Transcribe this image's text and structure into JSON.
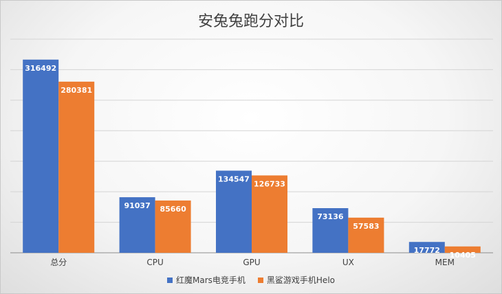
{
  "chart_data": {
    "type": "bar",
    "title": "安兔兔跑分对比",
    "categories": [
      "总分",
      "CPU",
      "GPU",
      "UX",
      "MEM"
    ],
    "series": [
      {
        "name": "红魔Mars电竞手机",
        "values": [
          316492,
          91037,
          134547,
          73136,
          17772
        ],
        "color": "#4472c4"
      },
      {
        "name": "黑鲨游戏手机Helo",
        "values": [
          280381,
          85660,
          126733,
          57583,
          10405
        ],
        "color": "#ed7d31"
      }
    ],
    "ylim": [
      0,
      350000
    ],
    "ystep": 50000,
    "show_y_tick_labels": false,
    "grid": true,
    "legend_position": "bottom"
  }
}
